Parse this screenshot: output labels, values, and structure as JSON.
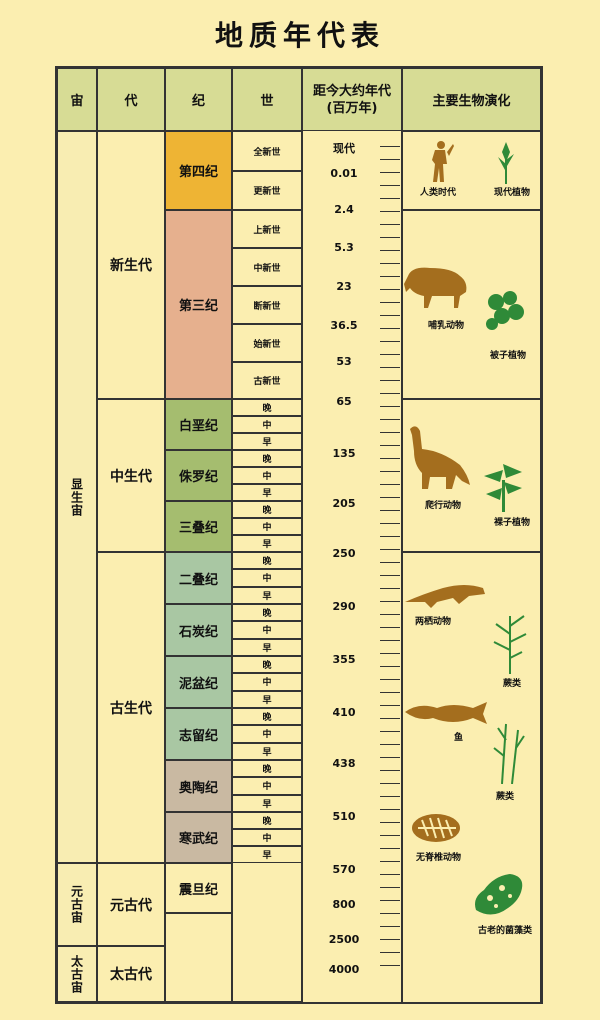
{
  "title": "地质年代表",
  "headers": {
    "eon": "宙",
    "era": "代",
    "period": "纪",
    "epoch": "世",
    "age": "距今大约年代\n(百万年)",
    "life": "主要生物演化"
  },
  "eons": [
    "显生宙",
    "元古宙",
    "太古宙"
  ],
  "eras": [
    "新生代",
    "中生代",
    "古生代",
    "元古代",
    "太古代"
  ],
  "periods": [
    "第四纪",
    "第三纪",
    "白垩纪",
    "侏罗纪",
    "三叠纪",
    "二叠纪",
    "石炭纪",
    "泥盆纪",
    "志留纪",
    "奥陶纪",
    "寒武纪",
    "震旦纪"
  ],
  "epochs_cenozoic": [
    "全新世",
    "更新世",
    "上新世",
    "中新世",
    "断新世",
    "始新世",
    "古新世"
  ],
  "epoch_subdiv": [
    "晚",
    "中",
    "早"
  ],
  "ages": [
    "现代",
    "0.01",
    "2.4",
    "5.3",
    "23",
    "36.5",
    "53",
    "65",
    "135",
    "205",
    "250",
    "290",
    "355",
    "410",
    "438",
    "510",
    "570",
    "800",
    "2500",
    "4000"
  ],
  "life": {
    "human_age": "人类时代",
    "modern_plants": "现代植物",
    "mammals": "哺乳动物",
    "angiosperms": "被子植物",
    "reptiles": "爬行动物",
    "gymnosperms": "裸子植物",
    "amphibians": "两栖动物",
    "ferns1": "蕨类",
    "fish": "鱼",
    "ferns2": "蕨类",
    "invertebrates": "无脊椎动物",
    "algae": "古老的菌藻类"
  },
  "colors": {
    "quaternary": "#eeb434",
    "tertiary": "#e6b08e",
    "mesozoic": "#a5bd6f",
    "paleozoic": "#a9c7a3",
    "early_paleo": "#c9b9a2",
    "fossil_brown": "#a46e1e",
    "plant_green": "#2f8a38"
  }
}
